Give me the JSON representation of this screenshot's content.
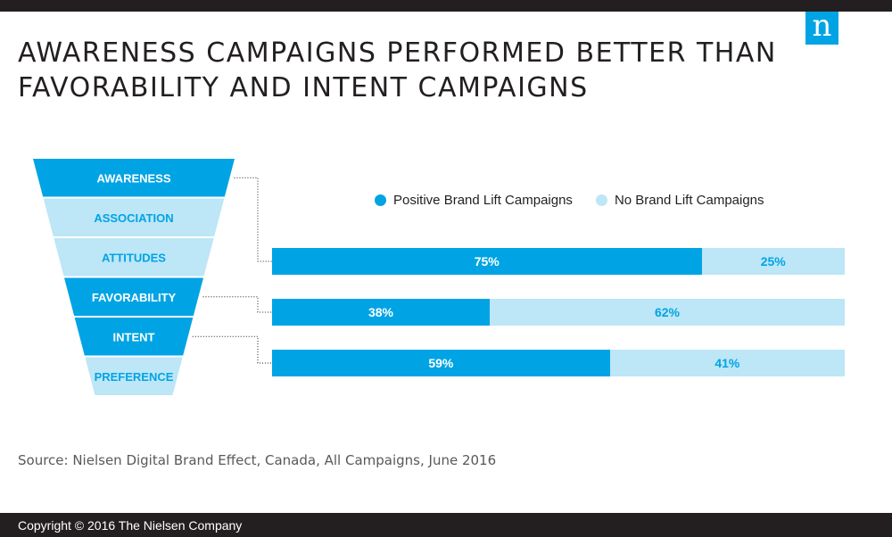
{
  "title_lines": [
    "AWARENESS CAMPAIGNS PERFORMED BETTER THAN",
    "FAVORABILITY AND INTENT CAMPAIGNS"
  ],
  "logo_letter": "n",
  "colors": {
    "positive": "#00a4e4",
    "negative": "#bde6f7",
    "dark": "#231f20",
    "funnel_dark_text": "#ffffff",
    "funnel_light_text": "#00a4e4"
  },
  "funnel": {
    "stages": [
      {
        "label": "AWARENESS",
        "highlight": true
      },
      {
        "label": "ASSOCIATION",
        "highlight": false
      },
      {
        "label": "ATTITUDES",
        "highlight": false
      },
      {
        "label": "FAVORABILITY",
        "highlight": true
      },
      {
        "label": "INTENT",
        "highlight": true
      },
      {
        "label": "PREFERENCE",
        "highlight": false
      }
    ]
  },
  "chart_data": {
    "type": "bar",
    "stacked": true,
    "orientation": "horizontal",
    "categories": [
      "AWARENESS",
      "FAVORABILITY",
      "INTENT"
    ],
    "series": [
      {
        "name": "Positive Brand Lift Campaigns",
        "values": [
          75,
          38,
          59
        ],
        "labels": [
          "75%",
          "38%",
          "59%"
        ]
      },
      {
        "name": "No Brand Lift Campaigns",
        "values": [
          25,
          62,
          41
        ],
        "labels": [
          "25%",
          "62%",
          "41%"
        ]
      }
    ],
    "xlim": [
      0,
      100
    ],
    "legend_position": "top"
  },
  "source_text": "Source: Nielsen Digital Brand Effect, Canada, All Campaigns, June 2016",
  "footer_text": "Copyright © 2016 The Nielsen Company"
}
